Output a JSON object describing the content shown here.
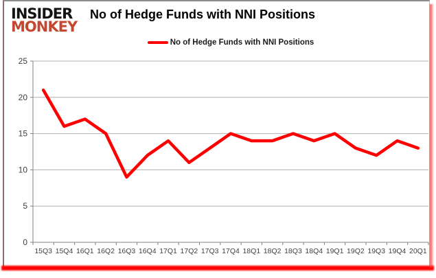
{
  "logo": {
    "line1": "INSIDER",
    "line2": "MONKEY"
  },
  "header": {
    "title": "No of Hedge Funds with NNI Positions"
  },
  "legend": {
    "label": "No of Hedge Funds with NNI Positions"
  },
  "chart_data": {
    "type": "line",
    "title": "No of Hedge Funds with NNI Positions",
    "categories": [
      "15Q3",
      "15Q4",
      "16Q1",
      "16Q2",
      "16Q3",
      "16Q4",
      "17Q1",
      "17Q2",
      "17Q3",
      "17Q4",
      "18Q1",
      "18Q2",
      "18Q3",
      "18Q4",
      "19Q1",
      "19Q2",
      "19Q3",
      "19Q4",
      "20Q1"
    ],
    "series": [
      {
        "name": "No of Hedge Funds with NNI Positions",
        "color": "#ff0000",
        "values": [
          21,
          16,
          17,
          15,
          9,
          12,
          14,
          11,
          13,
          15,
          14,
          14,
          15,
          14,
          15,
          13,
          12,
          14,
          13
        ]
      }
    ],
    "xlabel": "",
    "ylabel": "",
    "ylim": [
      0,
      25
    ],
    "yticks": [
      0,
      5,
      10,
      15,
      20,
      25
    ],
    "grid": "horizontal",
    "legend_position": "top"
  },
  "colors": {
    "series_red": "#ff0000",
    "logo_red": "#c4472f",
    "gridline": "#b0b0b0",
    "axis_line": "#808080",
    "tick_label": "#3f3f3f",
    "frame_border_gray": "#8c8c8c",
    "frame_shadow_red": "#ff0000",
    "background": "#ffffff"
  }
}
